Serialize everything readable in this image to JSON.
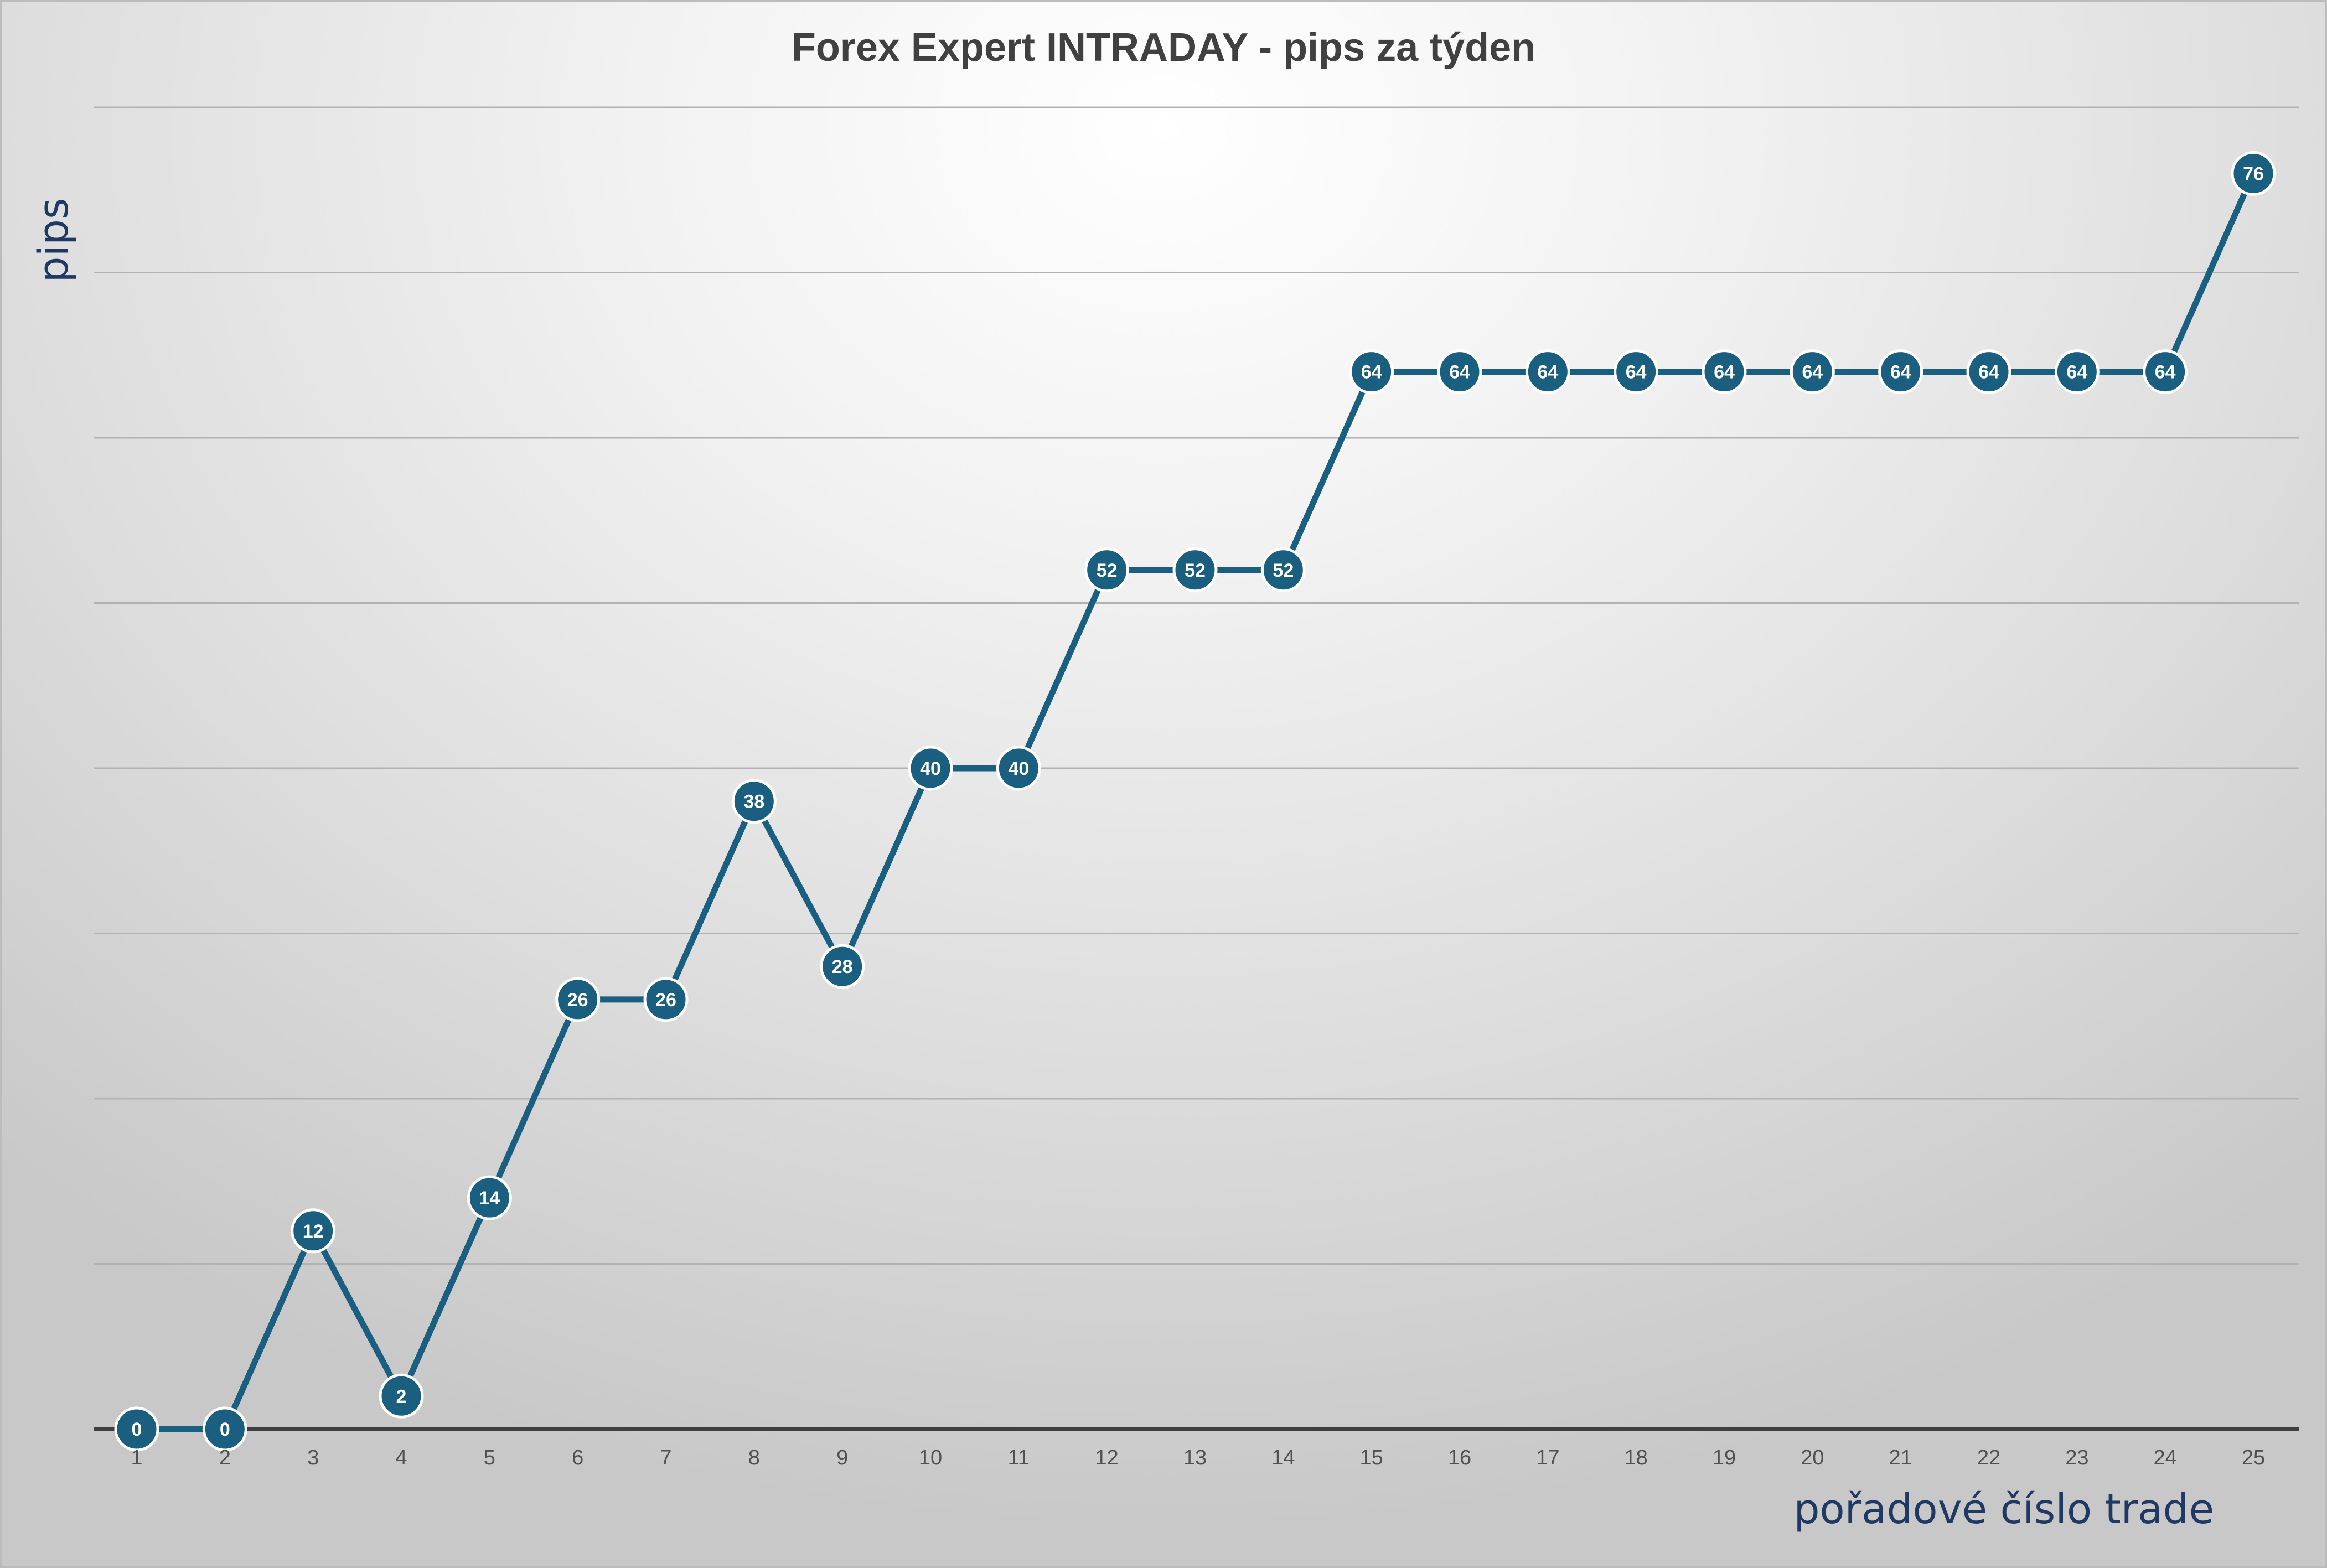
{
  "chart_data": {
    "type": "line",
    "title": "Forex Expert INTRADAY - pips za týden",
    "xlabel": "pořadové číslo trade",
    "ylabel": "pips",
    "x": [
      1,
      2,
      3,
      4,
      5,
      6,
      7,
      8,
      9,
      10,
      11,
      12,
      13,
      14,
      15,
      16,
      17,
      18,
      19,
      20,
      21,
      22,
      23,
      24,
      25
    ],
    "series": [
      {
        "values": [
          0,
          0,
          12,
          2,
          14,
          26,
          26,
          38,
          28,
          40,
          40,
          52,
          52,
          52,
          64,
          64,
          64,
          64,
          64,
          64,
          64,
          64,
          64,
          64,
          76
        ]
      }
    ],
    "ylim": [
      0,
      80
    ],
    "gridlines": true,
    "y_tick_labels_shown": false,
    "data_labels": true,
    "colors": {
      "line": "#1a5e80",
      "marker": "#1a5e80",
      "marker_outline": "#ffffff",
      "data_label_text": "#ffffff",
      "gridline": "#b2b2b2",
      "axis": "#3f3f3f",
      "title": "#404040",
      "axis_title": "#1f3864",
      "tick_label": "#505050"
    }
  }
}
